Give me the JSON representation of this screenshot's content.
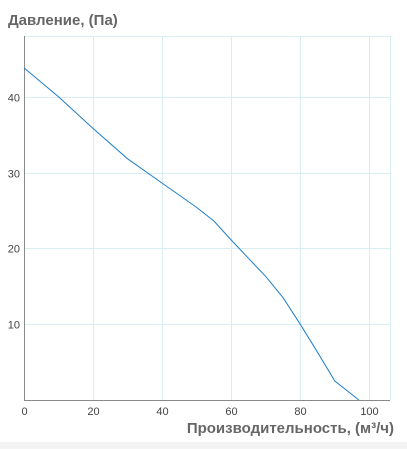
{
  "chart_data": {
    "type": "line",
    "ylabel": "Давление, (Па)",
    "xlabel": "Производительность, (м³/ч)",
    "xlim": [
      0,
      106
    ],
    "ylim": [
      0,
      48
    ],
    "x_ticks": [
      "0",
      "20",
      "40",
      "60",
      "80",
      "100"
    ],
    "y_ticks": [
      "10",
      "20",
      "30",
      "40"
    ],
    "grid": true,
    "colors": {
      "series": "#1f7fc8",
      "grid": "#d9eef3",
      "axis": "#8a8a8a",
      "title": "#666666"
    },
    "series": [
      {
        "x": [
          0,
          10,
          20,
          30,
          40,
          50,
          55,
          60,
          65,
          70,
          75,
          80,
          85,
          90,
          97
        ],
        "y": [
          43.8,
          40,
          35.8,
          31.8,
          28.6,
          25.4,
          23.6,
          21.1,
          18.7,
          16.3,
          13.5,
          10,
          6.3,
          2.5,
          0
        ]
      }
    ]
  }
}
